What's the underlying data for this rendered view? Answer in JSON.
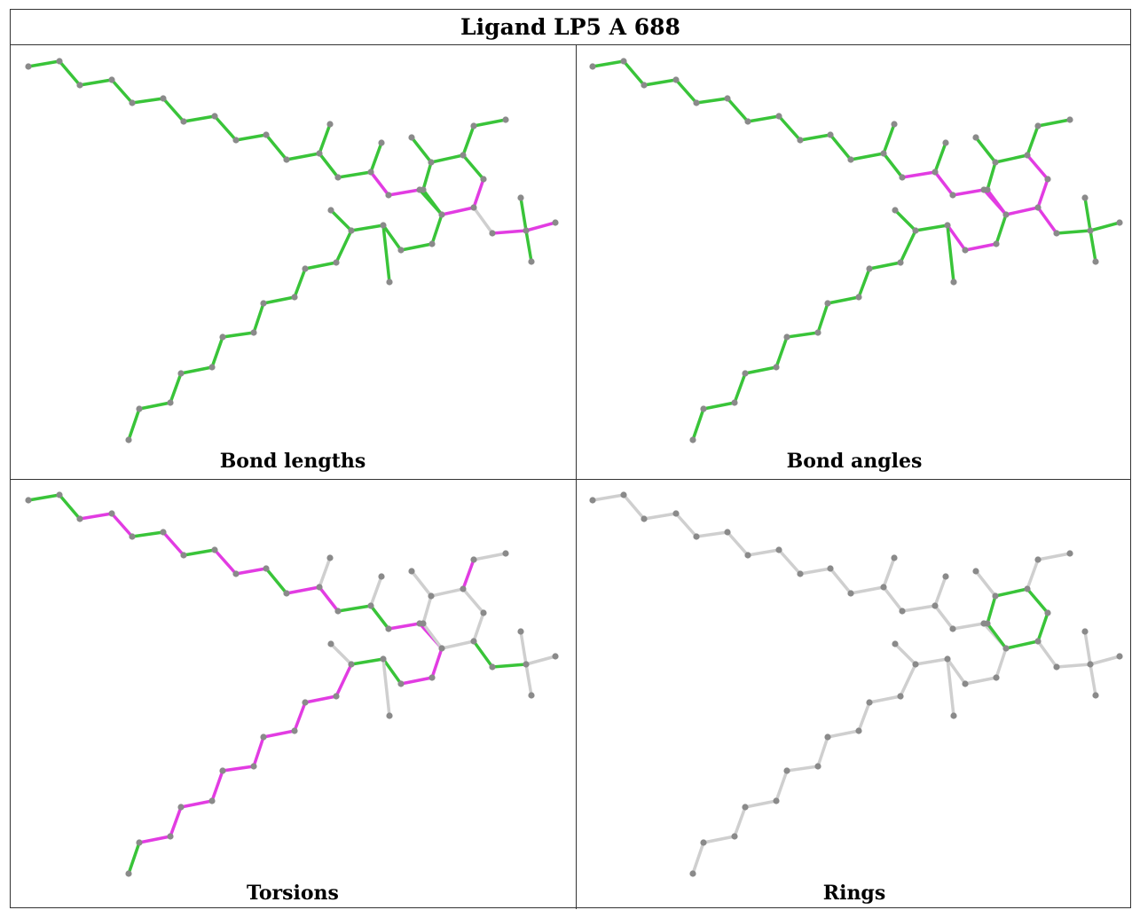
{
  "title": "Ligand LP5 A 688",
  "panels": [
    {
      "label": "Bond lengths"
    },
    {
      "label": "Bond angles"
    },
    {
      "label": "Torsions"
    },
    {
      "label": "Rings"
    }
  ],
  "colors": {
    "good": "#39c439",
    "outlier": "#e23ce2",
    "neutral": "#cfcfcf",
    "atom": "#8a8a8a"
  }
}
